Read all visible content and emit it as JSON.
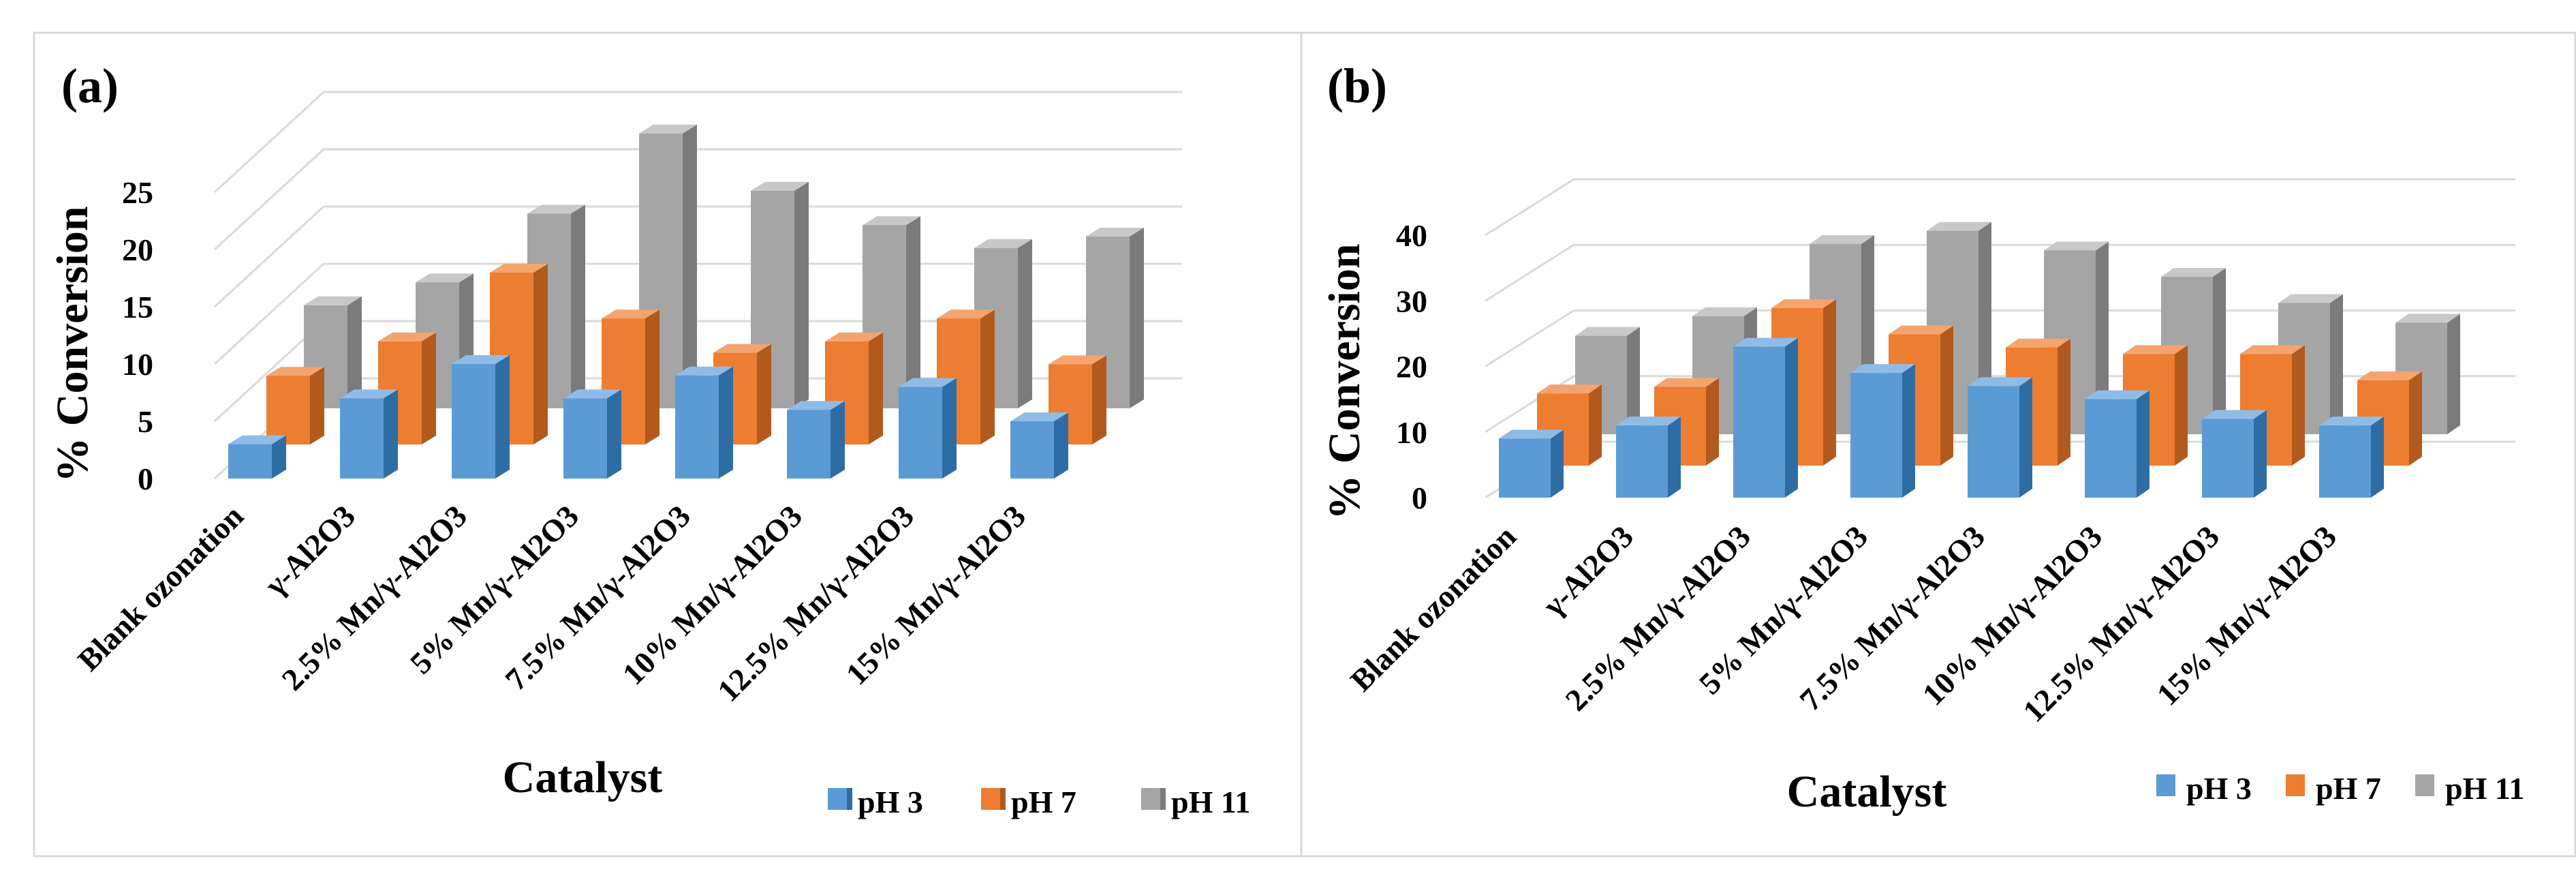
{
  "colors": {
    "pH 3": {
      "front": "#5b9bd5",
      "side": "#2e6da4",
      "top": "#8fbce6"
    },
    "pH 7": {
      "front": "#ed7d31",
      "side": "#b25a1d",
      "top": "#f4a46e"
    },
    "pH 11": {
      "front": "#a5a5a5",
      "side": "#7b7b7b",
      "top": "#c8c8c8"
    }
  },
  "chart_data": [
    {
      "type": "bar",
      "panel_label": "(a)",
      "xlabel": "Catalyst",
      "ylabel": "% Conversion",
      "ylim": [
        0,
        25
      ],
      "yticks": [
        0,
        5,
        10,
        15,
        20,
        25
      ],
      "grid": true,
      "legend_position": "bottom-right",
      "categories": [
        "Blank ozonation",
        "γ-Al2O3",
        "2.5% Mn/γ-Al2O3",
        "5% Mn/γ-Al2O3",
        "7.5% Mn/γ-Al2O3",
        "10% Mn/γ-Al2O3",
        "12.5% Mn/γ-Al2O3",
        "15% Mn/γ-Al2O3"
      ],
      "series": [
        {
          "name": "pH 3",
          "values": [
            3,
            7,
            10,
            7,
            9,
            6,
            8,
            5
          ]
        },
        {
          "name": "pH 7",
          "values": [
            6,
            9,
            15,
            11,
            8,
            9,
            11,
            7
          ]
        },
        {
          "name": "pH 11",
          "values": [
            9,
            11,
            17,
            24,
            19,
            16,
            14,
            15
          ]
        }
      ]
    },
    {
      "type": "bar",
      "panel_label": "(b)",
      "xlabel": "Catalyst",
      "ylabel": "% Conversion",
      "ylim": [
        0,
        40
      ],
      "yticks": [
        0,
        10,
        20,
        30,
        40
      ],
      "grid": true,
      "legend_position": "bottom-right",
      "categories": [
        "Blank ozonation",
        "γ-Al2O3",
        "2.5% Mn/γ-Al2O3",
        "5% Mn/γ-Al2O3",
        "7.5% Mn/γ-Al2O3",
        "10% Mn/γ-Al2O3",
        "12.5% Mn/γ-Al2O3",
        "15% Mn/γ-Al2O3"
      ],
      "series": [
        {
          "name": "pH 3",
          "values": [
            9,
            11,
            23,
            19,
            17,
            15,
            12,
            11
          ]
        },
        {
          "name": "pH 7",
          "values": [
            11,
            12,
            24,
            20,
            18,
            17,
            17,
            13
          ]
        },
        {
          "name": "pH 11",
          "values": [
            15,
            18,
            29,
            31,
            28,
            24,
            20,
            17
          ]
        }
      ]
    }
  ]
}
